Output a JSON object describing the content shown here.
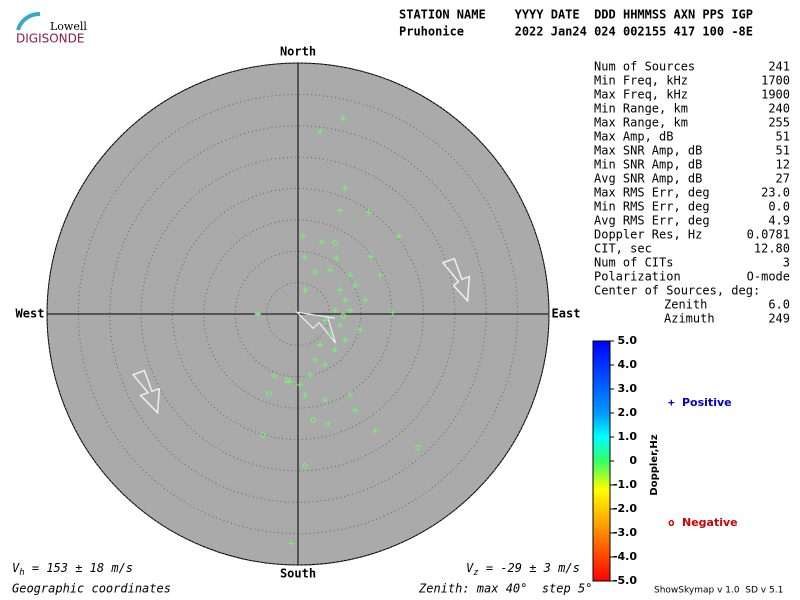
{
  "chart_data": {
    "type": "skymap",
    "logo": {
      "top": "Lowell",
      "bottom": "DIGISONDE"
    },
    "header": [
      "STATION NAME    YYYY DATE  DDD HHMMSS AXN PPS IGP",
      "Pruhonice       2022 Jan24 024 002155 417 100 -8E"
    ],
    "directions": {
      "north": "North",
      "south": "South",
      "west": "West",
      "east": "East"
    },
    "rlim": [
      0,
      40
    ],
    "rticks": [
      5,
      10,
      15,
      20,
      25,
      30,
      35,
      40
    ],
    "series": [
      {
        "name": "Positive",
        "marker": "+",
        "color": "#66ff66",
        "legend_color": "#0000cc",
        "x": [
          7.2,
          3.5,
          7.5,
          6.7,
          11.3,
          16.1,
          0.8,
          3.8,
          1.0,
          6.1,
          11.6,
          2.7,
          5.1,
          8.3,
          13.1,
          -6.4,
          15.1,
          1.1,
          6.7,
          7.5,
          5.9,
          8.3,
          4.3,
          6.7,
          5.1,
          7.5,
          3.5,
          5.9,
          2.7,
          4.3,
          1.9,
          0.3,
          -3.8,
          -1.3,
          1.1,
          4.3,
          8.3,
          9.1,
          4.8,
          12.3,
          -1.1,
          9.9,
          9.1,
          10.7
        ],
        "y": [
          31.2,
          29.1,
          20.1,
          16.5,
          16.2,
          12.4,
          12.4,
          11.5,
          9.1,
          8.9,
          9.2,
          6.7,
          7.0,
          6.2,
          6.2,
          0.0,
          0.2,
          3.8,
          3.8,
          2.2,
          0.6,
          0.6,
          -1.0,
          -1.8,
          -3.3,
          -4.1,
          -4.9,
          -5.7,
          -7.3,
          -8.1,
          -9.7,
          -11.3,
          -9.9,
          -10.8,
          -12.9,
          -13.7,
          -12.9,
          -15.3,
          -17.5,
          -18.6,
          -36.6,
          -2.5,
          4.6,
          2.2
        ]
      },
      {
        "name": "Negative",
        "marker": "o",
        "color": "#66ff66",
        "legend_color": "#cc0000",
        "x": [
          5.9,
          -4.6,
          -1.7,
          1.1,
          19.1,
          -5.6,
          2.4,
          7.2
        ],
        "y": [
          11.3,
          -12.7,
          -10.6,
          -24.2,
          -21.3,
          -19.3,
          -16.9,
          -0.3
        ]
      }
    ],
    "stats": [
      [
        "Num of Sources",
        "241"
      ],
      [
        "Min Freq, kHz",
        "1700"
      ],
      [
        "Max Freq, kHz",
        "1900"
      ],
      [
        "Min Range, km",
        "240"
      ],
      [
        "Max Range, km",
        "255"
      ],
      [
        "Max Amp, dB",
        "51"
      ],
      [
        "Max SNR Amp, dB",
        "51"
      ],
      [
        "Min SNR Amp, dB",
        "12"
      ],
      [
        "Avg SNR Amp, dB",
        "27"
      ],
      [
        "Max RMS Err, deg",
        "23.0"
      ],
      [
        "Min RMS Err, deg",
        "0.0"
      ],
      [
        "Avg RMS Err, deg",
        "4.9"
      ],
      [
        "Doppler Res, Hz",
        "0.0781"
      ],
      [
        "CIT, sec",
        "12.80"
      ],
      [
        "Num of CITs",
        "3"
      ],
      [
        "Polarization",
        "O-mode"
      ]
    ],
    "center": {
      "title": "Center of Sources, deg:",
      "rows": [
        [
          "Zenith",
          "6.0"
        ],
        [
          "Azimuth",
          "249"
        ]
      ]
    },
    "colorbar": {
      "label": "Doppler,Hz",
      "lim": [
        -5,
        5
      ],
      "ticks": [
        {
          "value": 5,
          "label": "5.0"
        },
        {
          "value": 4,
          "label": "4.0"
        },
        {
          "value": 3,
          "label": "3.0"
        },
        {
          "value": 2,
          "label": "2.0"
        },
        {
          "value": 1,
          "label": "1.0"
        },
        0,
        {
          "value": -1,
          "label": "-1.0"
        },
        {
          "value": -2,
          "label": "-2.0"
        },
        {
          "value": -3,
          "label": "-3.0"
        },
        {
          "value": -4,
          "label": "-4.0"
        },
        {
          "value": -5,
          "label": "-5.0"
        }
      ]
    },
    "vh": {
      "symbol": "V",
      "subscript": "h",
      "text": " = 153 ± 18 m/s"
    },
    "vz": {
      "symbol": "V",
      "subscript": "z",
      "text": " = -29 ± 3 m/s"
    },
    "footer_left": "Geographic coordinates",
    "footer_mid": "Zenith: max 40°  step 5°",
    "footer_right": "ShowSkymap v 1.0  SD v 5.1"
  }
}
